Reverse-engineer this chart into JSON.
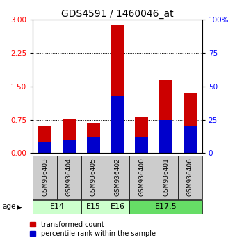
{
  "title": "GDS4591 / 1460046_at",
  "samples": [
    "GSM936403",
    "GSM936404",
    "GSM936405",
    "GSM936402",
    "GSM936400",
    "GSM936401",
    "GSM936406"
  ],
  "transformed_count": [
    0.6,
    0.78,
    0.68,
    2.88,
    0.82,
    1.65,
    1.35
  ],
  "percentile_rank_pct": [
    8,
    10,
    12,
    43,
    12,
    25,
    20
  ],
  "age_groups": [
    {
      "label": "E14",
      "start": 0,
      "end": 2,
      "color": "#ccffcc"
    },
    {
      "label": "E15",
      "start": 2,
      "end": 3,
      "color": "#ccffcc"
    },
    {
      "label": "E16",
      "start": 3,
      "end": 4,
      "color": "#ccffcc"
    },
    {
      "label": "E17.5",
      "start": 4,
      "end": 7,
      "color": "#66dd66"
    }
  ],
  "ylim_left": [
    0,
    3
  ],
  "ylim_right": [
    0,
    100
  ],
  "yticks_left": [
    0,
    0.75,
    1.5,
    2.25,
    3
  ],
  "yticks_right": [
    0,
    25,
    50,
    75,
    100
  ],
  "bar_color_red": "#cc0000",
  "bar_color_blue": "#0000cc",
  "bar_width": 0.55,
  "bg_color_plot": "#ffffff",
  "bg_color_sample": "#cccccc",
  "legend_red": "transformed count",
  "legend_blue": "percentile rank within the sample",
  "title_fontsize": 10,
  "tick_fontsize": 7.5,
  "sample_fontsize": 6.5,
  "age_fontsize": 8,
  "legend_fontsize": 7
}
